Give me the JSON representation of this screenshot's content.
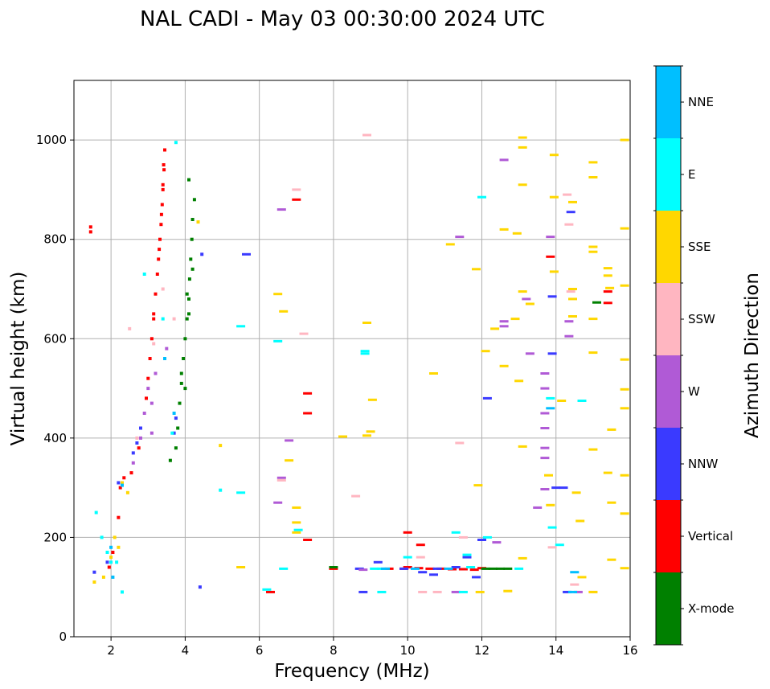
{
  "chart_data": {
    "type": "scatter",
    "title": "NAL CADI - May 03 00:30:00 2024 UTC",
    "xlabel": "Frequency (MHz)",
    "ylabel": "Virtual height (km)",
    "xlim": [
      1,
      16
    ],
    "ylim": [
      0,
      1120
    ],
    "xticks": [
      2,
      4,
      6,
      8,
      10,
      12,
      14,
      16
    ],
    "yticks": [
      0,
      200,
      400,
      600,
      800,
      1000
    ],
    "grid": true,
    "colorbar": {
      "label": "Azimuth Direction",
      "categories": [
        "X-mode",
        "Vertical",
        "NNW",
        "W",
        "SSW",
        "SSE",
        "E",
        "NNE"
      ],
      "colors": [
        "#008000",
        "#ff0000",
        "#3a3aff",
        "#b05ad6",
        "#ffb6c1",
        "#ffd700",
        "#00ffff",
        "#00bfff"
      ]
    },
    "series": [
      {
        "name": "Vertical",
        "points": [
          [
            1.45,
            815
          ],
          [
            1.45,
            825
          ],
          [
            3.05,
            560
          ],
          [
            3.1,
            600
          ],
          [
            3.15,
            640
          ],
          [
            3.2,
            690
          ],
          [
            3.25,
            730
          ],
          [
            3.3,
            780
          ],
          [
            3.35,
            830
          ],
          [
            3.38,
            870
          ],
          [
            3.4,
            910
          ],
          [
            3.42,
            950
          ],
          [
            3.45,
            980
          ],
          [
            3.0,
            520
          ],
          [
            2.95,
            480
          ],
          [
            3.15,
            650
          ],
          [
            3.28,
            760
          ],
          [
            3.32,
            800
          ],
          [
            3.36,
            850
          ],
          [
            3.4,
            900
          ],
          [
            3.43,
            940
          ],
          [
            2.25,
            300
          ],
          [
            2.35,
            320
          ],
          [
            2.55,
            330
          ],
          [
            2.75,
            380
          ],
          [
            1.95,
            140
          ],
          [
            2.05,
            170
          ],
          [
            2.2,
            240
          ],
          [
            6.3,
            90
          ],
          [
            7.0,
            880
          ],
          [
            7.3,
            195
          ],
          [
            7.3,
            490
          ],
          [
            7.3,
            450
          ],
          [
            8.0,
            137
          ],
          [
            9.5,
            137
          ],
          [
            9.9,
            137
          ],
          [
            10.0,
            140
          ],
          [
            10.3,
            138
          ],
          [
            10.6,
            137
          ],
          [
            10.9,
            137
          ],
          [
            11.2,
            136
          ],
          [
            11.5,
            136
          ],
          [
            11.8,
            135
          ],
          [
            12.0,
            138
          ],
          [
            10.0,
            210
          ],
          [
            10.35,
            185
          ],
          [
            13.85,
            765
          ],
          [
            15.4,
            695
          ],
          [
            15.4,
            672
          ]
        ]
      },
      {
        "name": "X-mode",
        "points": [
          [
            3.6,
            355
          ],
          [
            3.75,
            380
          ],
          [
            3.8,
            420
          ],
          [
            3.85,
            470
          ],
          [
            3.9,
            510
          ],
          [
            3.95,
            560
          ],
          [
            4.0,
            600
          ],
          [
            4.05,
            640
          ],
          [
            4.1,
            680
          ],
          [
            4.12,
            720
          ],
          [
            4.15,
            760
          ],
          [
            4.18,
            800
          ],
          [
            4.2,
            840
          ],
          [
            4.25,
            880
          ],
          [
            4.1,
            920
          ],
          [
            4.0,
            500
          ],
          [
            4.1,
            650
          ],
          [
            4.2,
            740
          ],
          [
            4.05,
            690
          ],
          [
            3.9,
            530
          ],
          [
            8.0,
            140
          ],
          [
            12.1,
            137
          ],
          [
            12.3,
            137
          ],
          [
            12.5,
            137
          ],
          [
            12.7,
            137
          ],
          [
            15.1,
            673
          ]
        ]
      },
      {
        "name": "NNW",
        "points": [
          [
            2.2,
            310
          ],
          [
            2.6,
            370
          ],
          [
            2.7,
            390
          ],
          [
            2.8,
            420
          ],
          [
            3.7,
            410
          ],
          [
            3.75,
            440
          ],
          [
            4.45,
            770
          ],
          [
            5.65,
            770
          ],
          [
            1.55,
            130
          ],
          [
            1.9,
            150
          ],
          [
            4.4,
            100
          ],
          [
            8.7,
            137
          ],
          [
            9.2,
            150
          ],
          [
            9.9,
            137
          ],
          [
            10.4,
            130
          ],
          [
            10.7,
            125
          ],
          [
            10.8,
            137
          ],
          [
            11.3,
            140
          ],
          [
            11.6,
            160
          ],
          [
            11.85,
            120
          ],
          [
            12.0,
            195
          ],
          [
            12.15,
            480
          ],
          [
            13.9,
            685
          ],
          [
            13.9,
            570
          ],
          [
            14.0,
            300
          ],
          [
            14.2,
            300
          ],
          [
            14.4,
            855
          ],
          [
            14.3,
            90
          ],
          [
            8.8,
            90
          ]
        ]
      },
      {
        "name": "W",
        "points": [
          [
            2.8,
            400
          ],
          [
            2.9,
            450
          ],
          [
            3.0,
            500
          ],
          [
            3.1,
            470
          ],
          [
            3.2,
            530
          ],
          [
            3.1,
            410
          ],
          [
            2.6,
            350
          ],
          [
            3.5,
            580
          ],
          [
            6.6,
            860
          ],
          [
            6.8,
            395
          ],
          [
            6.6,
            320
          ],
          [
            6.5,
            270
          ],
          [
            11.4,
            805
          ],
          [
            12.6,
            960
          ],
          [
            12.6,
            635
          ],
          [
            12.6,
            625
          ],
          [
            13.3,
            570
          ],
          [
            13.2,
            680
          ],
          [
            13.7,
            530
          ],
          [
            13.7,
            500
          ],
          [
            13.7,
            450
          ],
          [
            13.7,
            420
          ],
          [
            13.7,
            380
          ],
          [
            13.7,
            360
          ],
          [
            13.5,
            260
          ],
          [
            13.7,
            297
          ],
          [
            14.35,
            605
          ],
          [
            14.35,
            635
          ],
          [
            13.85,
            805
          ],
          [
            12.4,
            190
          ],
          [
            11.3,
            90
          ],
          [
            14.6,
            90
          ],
          [
            8.8,
            135
          ]
        ]
      },
      {
        "name": "SSW",
        "points": [
          [
            2.5,
            620
          ],
          [
            2.7,
            400
          ],
          [
            3.15,
            590
          ],
          [
            3.4,
            700
          ],
          [
            3.7,
            640
          ],
          [
            7.2,
            610
          ],
          [
            7.0,
            900
          ],
          [
            6.6,
            315
          ],
          [
            8.6,
            283
          ],
          [
            8.9,
            1010
          ],
          [
            10.35,
            160
          ],
          [
            10.4,
            90
          ],
          [
            10.8,
            90
          ],
          [
            11.4,
            390
          ],
          [
            11.5,
            200
          ],
          [
            14.35,
            830
          ],
          [
            14.3,
            890
          ],
          [
            14.4,
            695
          ],
          [
            14.5,
            105
          ],
          [
            13.9,
            180
          ],
          [
            15.0,
            90
          ]
        ]
      },
      {
        "name": "SSE",
        "points": [
          [
            1.55,
            110
          ],
          [
            1.8,
            120
          ],
          [
            2.0,
            160
          ],
          [
            2.1,
            200
          ],
          [
            2.2,
            180
          ],
          [
            2.3,
            310
          ],
          [
            2.45,
            290
          ],
          [
            4.35,
            835
          ],
          [
            4.95,
            385
          ],
          [
            5.5,
            140
          ],
          [
            6.5,
            690
          ],
          [
            6.65,
            655
          ],
          [
            6.8,
            355
          ],
          [
            7.0,
            260
          ],
          [
            7.0,
            230
          ],
          [
            7.0,
            210
          ],
          [
            8.25,
            403
          ],
          [
            8.9,
            632
          ],
          [
            8.9,
            405
          ],
          [
            9.0,
            413
          ],
          [
            9.05,
            477
          ],
          [
            10.7,
            530
          ],
          [
            11.15,
            790
          ],
          [
            11.85,
            740
          ],
          [
            11.9,
            305
          ],
          [
            11.95,
            90
          ],
          [
            12.1,
            575
          ],
          [
            12.35,
            620
          ],
          [
            12.6,
            820
          ],
          [
            12.6,
            545
          ],
          [
            12.9,
            640
          ],
          [
            12.95,
            812
          ],
          [
            13.0,
            515
          ],
          [
            13.1,
            1005
          ],
          [
            13.1,
            985
          ],
          [
            13.1,
            910
          ],
          [
            13.1,
            695
          ],
          [
            13.1,
            383
          ],
          [
            13.1,
            158
          ],
          [
            12.7,
            92
          ],
          [
            13.3,
            670
          ],
          [
            13.8,
            325
          ],
          [
            13.85,
            265
          ],
          [
            13.95,
            970
          ],
          [
            13.95,
            885
          ],
          [
            13.95,
            735
          ],
          [
            14.15,
            475
          ],
          [
            14.45,
            875
          ],
          [
            14.45,
            700
          ],
          [
            14.45,
            680
          ],
          [
            14.45,
            645
          ],
          [
            14.55,
            290
          ],
          [
            14.65,
            233
          ],
          [
            14.7,
            120
          ],
          [
            15.0,
            955
          ],
          [
            15.0,
            925
          ],
          [
            15.0,
            785
          ],
          [
            15.0,
            775
          ],
          [
            15.0,
            640
          ],
          [
            15.0,
            572
          ],
          [
            15.0,
            377
          ],
          [
            15.4,
            742
          ],
          [
            15.4,
            727
          ],
          [
            15.45,
            702
          ],
          [
            15.5,
            417
          ],
          [
            15.4,
            330
          ],
          [
            15.5,
            270
          ],
          [
            15.5,
            155
          ],
          [
            15.85,
            1000
          ],
          [
            15.85,
            822
          ],
          [
            15.85,
            707
          ],
          [
            15.85,
            558
          ],
          [
            15.85,
            498
          ],
          [
            15.85,
            460
          ],
          [
            15.85,
            325
          ],
          [
            15.85,
            248
          ],
          [
            15.85,
            138
          ],
          [
            15.0,
            90
          ]
        ]
      },
      {
        "name": "E",
        "points": [
          [
            1.6,
            250
          ],
          [
            1.75,
            200
          ],
          [
            1.9,
            170
          ],
          [
            2.0,
            150
          ],
          [
            2.15,
            150
          ],
          [
            2.3,
            90
          ],
          [
            2.9,
            730
          ],
          [
            3.4,
            640
          ],
          [
            3.65,
            410
          ],
          [
            3.75,
            995
          ],
          [
            4.95,
            295
          ],
          [
            5.5,
            290
          ],
          [
            5.5,
            625
          ],
          [
            6.2,
            95
          ],
          [
            6.5,
            595
          ],
          [
            6.65,
            137
          ],
          [
            7.05,
            215
          ],
          [
            8.85,
            575
          ],
          [
            8.85,
            570
          ],
          [
            9.1,
            137
          ],
          [
            9.3,
            137
          ],
          [
            9.3,
            90
          ],
          [
            10.0,
            160
          ],
          [
            11.3,
            210
          ],
          [
            11.6,
            165
          ],
          [
            11.7,
            140
          ],
          [
            12.0,
            885
          ],
          [
            12.15,
            200
          ],
          [
            13.0,
            137
          ],
          [
            13.85,
            480
          ],
          [
            13.9,
            220
          ],
          [
            14.1,
            185
          ],
          [
            14.7,
            475
          ],
          [
            11.5,
            90
          ]
        ]
      },
      {
        "name": "NNE",
        "points": [
          [
            2.05,
            120
          ],
          [
            2.0,
            180
          ],
          [
            2.3,
            305
          ],
          [
            3.45,
            560
          ],
          [
            3.7,
            450
          ],
          [
            9.4,
            137
          ],
          [
            10.2,
            137
          ],
          [
            11.1,
            137
          ],
          [
            13.85,
            460
          ],
          [
            14.5,
            130
          ],
          [
            14.45,
            90
          ]
        ]
      }
    ]
  }
}
